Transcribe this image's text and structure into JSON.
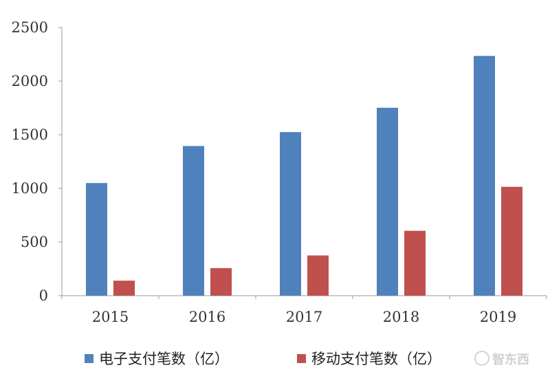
{
  "chart_data": {
    "type": "bar",
    "title": "",
    "xlabel": "",
    "ylabel": "",
    "categories": [
      "2015",
      "2016",
      "2017",
      "2018",
      "2019"
    ],
    "series": [
      {
        "name": "电子支付笔数（亿）",
        "color": "#4f81bd",
        "values": [
          1050,
          1395,
          1525,
          1752,
          2235
        ]
      },
      {
        "name": "移动支付笔数（亿）",
        "color": "#c0504d",
        "values": [
          140,
          257,
          375,
          605,
          1015
        ]
      }
    ],
    "ylim": [
      0,
      2500
    ],
    "yticks": [
      "0",
      "500",
      "1000",
      "1500",
      "2000",
      "2500"
    ],
    "grid": false,
    "legend_position": "bottom"
  },
  "watermark": {
    "text": "智东西"
  }
}
